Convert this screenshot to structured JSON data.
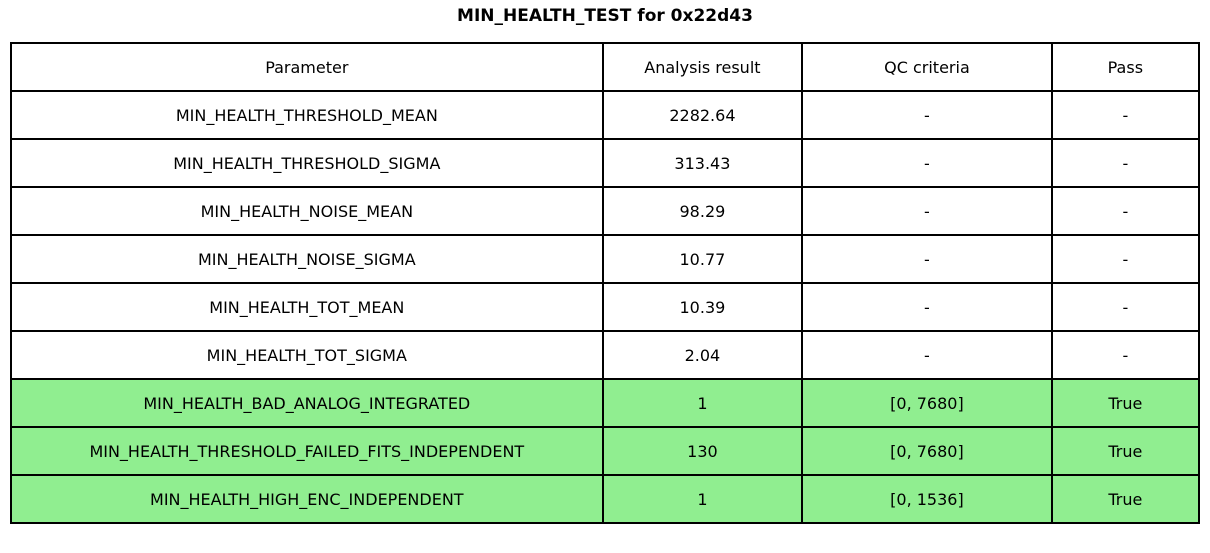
{
  "title": "MIN_HEALTH_TEST for 0x22d43",
  "colors": {
    "pass_row_green": "#90ee90",
    "border_black": "#000000",
    "background_white": "#ffffff"
  },
  "chart_data": {
    "type": "table",
    "title": "MIN_HEALTH_TEST for 0x22d43",
    "columns": [
      "Parameter",
      "Analysis result",
      "QC criteria",
      "Pass"
    ],
    "rows": [
      {
        "parameter": "MIN_HEALTH_THRESHOLD_MEAN",
        "analysis_result": "2282.64",
        "qc_criteria": "-",
        "pass": "-",
        "highlighted": false
      },
      {
        "parameter": "MIN_HEALTH_THRESHOLD_SIGMA",
        "analysis_result": "313.43",
        "qc_criteria": "-",
        "pass": "-",
        "highlighted": false
      },
      {
        "parameter": "MIN_HEALTH_NOISE_MEAN",
        "analysis_result": "98.29",
        "qc_criteria": "-",
        "pass": "-",
        "highlighted": false
      },
      {
        "parameter": "MIN_HEALTH_NOISE_SIGMA",
        "analysis_result": "10.77",
        "qc_criteria": "-",
        "pass": "-",
        "highlighted": false
      },
      {
        "parameter": "MIN_HEALTH_TOT_MEAN",
        "analysis_result": "10.39",
        "qc_criteria": "-",
        "pass": "-",
        "highlighted": false
      },
      {
        "parameter": "MIN_HEALTH_TOT_SIGMA",
        "analysis_result": "2.04",
        "qc_criteria": "-",
        "pass": "-",
        "highlighted": false
      },
      {
        "parameter": "MIN_HEALTH_BAD_ANALOG_INTEGRATED",
        "analysis_result": "1",
        "qc_criteria": "[0, 7680]",
        "pass": "True",
        "highlighted": true
      },
      {
        "parameter": "MIN_HEALTH_THRESHOLD_FAILED_FITS_INDEPENDENT",
        "analysis_result": "130",
        "qc_criteria": "[0, 7680]",
        "pass": "True",
        "highlighted": true
      },
      {
        "parameter": "MIN_HEALTH_HIGH_ENC_INDEPENDENT",
        "analysis_result": "1",
        "qc_criteria": "[0, 1536]",
        "pass": "True",
        "highlighted": true
      }
    ]
  }
}
